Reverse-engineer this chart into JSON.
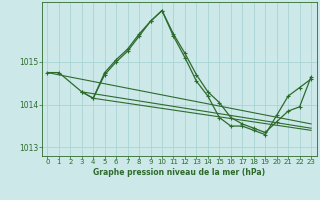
{
  "title": "Graphe pression niveau de la mer (hPa)",
  "background_color": "#cce8e8",
  "grid_color": "#aad4d4",
  "line_color": "#2d6b2d",
  "ylim": [
    1012.8,
    1016.4
  ],
  "yticks": [
    1013,
    1014,
    1015
  ],
  "xlim": [
    -0.5,
    23.5
  ],
  "xticks": [
    0,
    1,
    2,
    3,
    4,
    5,
    6,
    7,
    8,
    9,
    10,
    11,
    12,
    13,
    14,
    15,
    16,
    17,
    18,
    19,
    20,
    21,
    22,
    23
  ],
  "series1_x": [
    0,
    1,
    3,
    4,
    5,
    6,
    7,
    8,
    9,
    10,
    11,
    12,
    13,
    14,
    15,
    16,
    17,
    18,
    19,
    20,
    21,
    22,
    23
  ],
  "series1_y": [
    1014.75,
    1014.75,
    1014.3,
    1014.15,
    1014.75,
    1015.05,
    1015.3,
    1015.65,
    1015.95,
    1016.2,
    1015.65,
    1015.2,
    1014.7,
    1014.3,
    1014.05,
    1013.7,
    1013.55,
    1013.45,
    1013.35,
    1013.6,
    1013.85,
    1013.95,
    1014.65
  ],
  "series2_x": [
    3,
    4,
    5,
    6,
    7,
    8,
    9,
    10,
    11,
    12,
    13,
    14,
    15,
    16,
    17,
    18,
    19,
    20,
    21,
    22,
    23
  ],
  "series2_y": [
    1014.3,
    1014.15,
    1014.7,
    1015.0,
    1015.25,
    1015.6,
    1015.95,
    1016.2,
    1015.6,
    1015.1,
    1014.55,
    1014.2,
    1013.7,
    1013.5,
    1013.5,
    1013.4,
    1013.3,
    1013.75,
    1014.2,
    1014.4,
    1014.6
  ],
  "trend1_x": [
    0,
    23
  ],
  "trend1_y": [
    1014.75,
    1013.55
  ],
  "trend2_x": [
    3,
    23
  ],
  "trend2_y": [
    1014.3,
    1013.45
  ],
  "trend3_x": [
    4,
    23
  ],
  "trend3_y": [
    1014.15,
    1013.4
  ]
}
